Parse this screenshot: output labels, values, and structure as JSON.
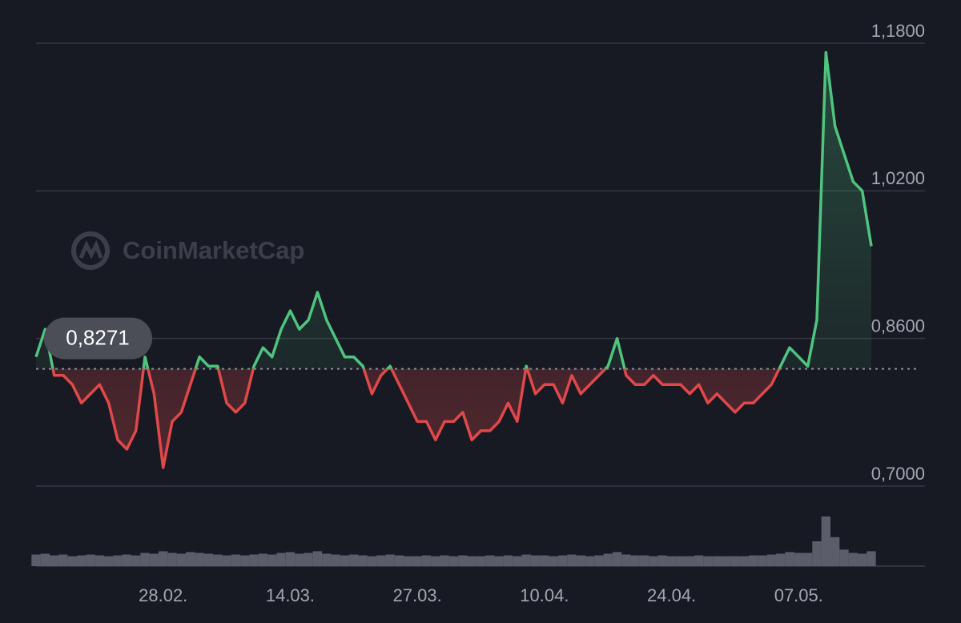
{
  "chart_data": {
    "type": "line",
    "watermark": "CoinMarketCap",
    "baseline": {
      "value": 0.8271,
      "label": "0,8271"
    },
    "ylim": [
      0.7,
      1.18
    ],
    "yticks": [
      {
        "value": 0.7,
        "label": "0,7000"
      },
      {
        "value": 0.86,
        "label": "0,8600"
      },
      {
        "value": 1.02,
        "label": "1,0200"
      },
      {
        "value": 1.18,
        "label": "1,1800"
      }
    ],
    "grid": true,
    "up_color": "#4fc47f",
    "down_color": "#e0484a",
    "categories": [
      null,
      null,
      null,
      null,
      null,
      null,
      null,
      null,
      null,
      null,
      null,
      null,
      null,
      null,
      "28.02.",
      null,
      null,
      null,
      null,
      null,
      null,
      null,
      null,
      null,
      null,
      null,
      null,
      null,
      "14.03.",
      null,
      null,
      null,
      null,
      null,
      null,
      null,
      null,
      null,
      null,
      null,
      null,
      null,
      "27.03.",
      null,
      null,
      null,
      null,
      null,
      null,
      null,
      null,
      null,
      null,
      null,
      null,
      null,
      "10.04.",
      null,
      null,
      null,
      null,
      null,
      null,
      null,
      null,
      null,
      null,
      null,
      null,
      null,
      "24.04.",
      null,
      null,
      null,
      null,
      null,
      null,
      null,
      null,
      null,
      null,
      null,
      null,
      null,
      "07.05.",
      null,
      null,
      null,
      null,
      null,
      null,
      null,
      null
    ],
    "values": [
      0.84,
      0.87,
      0.82,
      0.82,
      0.81,
      0.79,
      0.8,
      0.81,
      0.79,
      0.75,
      0.74,
      0.76,
      0.84,
      0.8,
      0.72,
      0.77,
      0.78,
      0.81,
      0.84,
      0.83,
      0.83,
      0.79,
      0.78,
      0.79,
      0.83,
      0.85,
      0.84,
      0.87,
      0.89,
      0.87,
      0.88,
      0.91,
      0.88,
      0.86,
      0.84,
      0.84,
      0.83,
      0.8,
      0.82,
      0.83,
      0.81,
      0.79,
      0.77,
      0.77,
      0.75,
      0.77,
      0.77,
      0.78,
      0.75,
      0.76,
      0.76,
      0.77,
      0.79,
      0.77,
      0.83,
      0.8,
      0.81,
      0.81,
      0.79,
      0.82,
      0.8,
      0.81,
      0.82,
      0.83,
      0.86,
      0.82,
      0.81,
      0.81,
      0.82,
      0.81,
      0.81,
      0.81,
      0.8,
      0.81,
      0.79,
      0.8,
      0.79,
      0.78,
      0.79,
      0.79,
      0.8,
      0.81,
      0.83,
      0.85,
      0.84,
      0.83,
      0.88,
      1.17,
      1.09,
      1.06,
      1.03,
      1.02,
      0.96
    ],
    "volume": [
      14,
      15,
      13,
      14,
      12,
      13,
      14,
      13,
      12,
      13,
      14,
      13,
      16,
      15,
      18,
      16,
      15,
      17,
      16,
      15,
      14,
      13,
      14,
      13,
      14,
      15,
      14,
      16,
      17,
      15,
      16,
      18,
      15,
      14,
      13,
      14,
      13,
      12,
      13,
      14,
      13,
      12,
      12,
      13,
      12,
      13,
      12,
      13,
      12,
      12,
      13,
      12,
      13,
      12,
      14,
      13,
      13,
      12,
      13,
      14,
      13,
      12,
      13,
      15,
      17,
      14,
      13,
      13,
      12,
      13,
      12,
      12,
      12,
      13,
      12,
      12,
      12,
      12,
      12,
      13,
      13,
      14,
      15,
      17,
      16,
      16,
      30,
      60,
      35,
      20,
      16,
      15,
      18
    ]
  }
}
